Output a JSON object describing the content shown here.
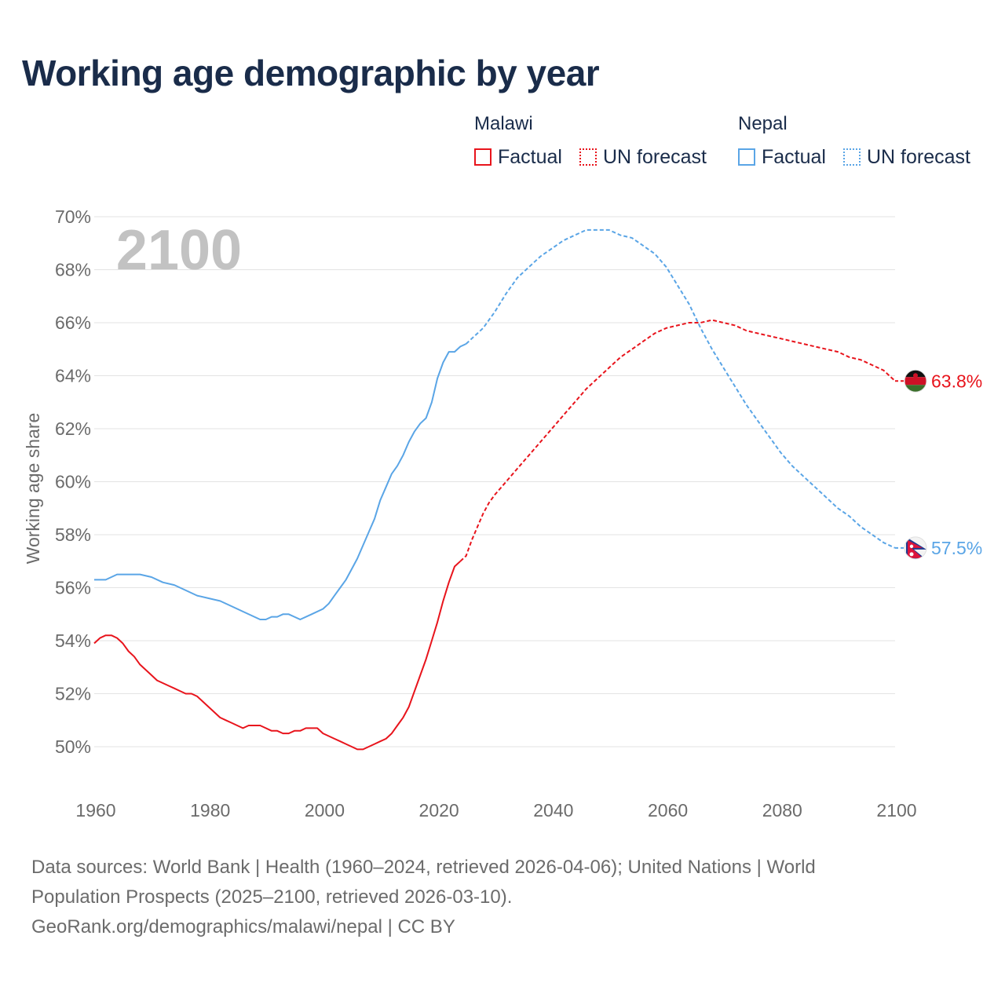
{
  "title": "Working age demographic by year",
  "legend": {
    "groups": [
      {
        "name": "Malawi",
        "items": [
          {
            "label": "Factual",
            "color": "#e8141c",
            "style": "solid"
          },
          {
            "label": "UN forecast",
            "color": "#e8141c",
            "style": "dotted"
          }
        ]
      },
      {
        "name": "Nepal",
        "items": [
          {
            "label": "Factual",
            "color": "#5aa5e6",
            "style": "solid"
          },
          {
            "label": "UN forecast",
            "color": "#5aa5e6",
            "style": "dotted"
          }
        ]
      }
    ]
  },
  "footer": {
    "line1": "Data sources: World Bank | Health (1960–2024, retrieved 2026-04-06); United Nations | World",
    "line2": "Population Prospects (2025–2100, retrieved 2026-03-10).",
    "line3": "GeoRank.org/demographics/malawi/nepal | CC BY"
  },
  "chart_data": {
    "type": "line",
    "title": "Working age demographic by year",
    "ylabel": "Working age share",
    "xlabel": "",
    "year_watermark": "2100",
    "xlim": [
      1960,
      2100
    ],
    "ylim": [
      49,
      70
    ],
    "x_ticks": [
      1960,
      1980,
      2000,
      2020,
      2040,
      2060,
      2080,
      2100
    ],
    "y_ticks": [
      50,
      52,
      54,
      56,
      58,
      60,
      62,
      64,
      66,
      68,
      70
    ],
    "y_tick_labels": [
      "50%",
      "52%",
      "54%",
      "56%",
      "58%",
      "60%",
      "62%",
      "64%",
      "66%",
      "68%",
      "70%"
    ],
    "grid": true,
    "series": [
      {
        "name": "Malawi",
        "color": "#e8141c",
        "end_label": "63.8%",
        "flag": "malawi",
        "factual": [
          [
            1960,
            53.9
          ],
          [
            1961,
            54.1
          ],
          [
            1962,
            54.2
          ],
          [
            1963,
            54.2
          ],
          [
            1964,
            54.1
          ],
          [
            1965,
            53.9
          ],
          [
            1966,
            53.6
          ],
          [
            1967,
            53.4
          ],
          [
            1968,
            53.1
          ],
          [
            1969,
            52.9
          ],
          [
            1970,
            52.7
          ],
          [
            1971,
            52.5
          ],
          [
            1972,
            52.4
          ],
          [
            1973,
            52.3
          ],
          [
            1974,
            52.2
          ],
          [
            1975,
            52.1
          ],
          [
            1976,
            52.0
          ],
          [
            1977,
            52.0
          ],
          [
            1978,
            51.9
          ],
          [
            1979,
            51.7
          ],
          [
            1980,
            51.5
          ],
          [
            1981,
            51.3
          ],
          [
            1982,
            51.1
          ],
          [
            1983,
            51.0
          ],
          [
            1984,
            50.9
          ],
          [
            1985,
            50.8
          ],
          [
            1986,
            50.7
          ],
          [
            1987,
            50.8
          ],
          [
            1988,
            50.8
          ],
          [
            1989,
            50.8
          ],
          [
            1990,
            50.7
          ],
          [
            1991,
            50.6
          ],
          [
            1992,
            50.6
          ],
          [
            1993,
            50.5
          ],
          [
            1994,
            50.5
          ],
          [
            1995,
            50.6
          ],
          [
            1996,
            50.6
          ],
          [
            1997,
            50.7
          ],
          [
            1998,
            50.7
          ],
          [
            1999,
            50.7
          ],
          [
            2000,
            50.5
          ],
          [
            2001,
            50.4
          ],
          [
            2002,
            50.3
          ],
          [
            2003,
            50.2
          ],
          [
            2004,
            50.1
          ],
          [
            2005,
            50.0
          ],
          [
            2006,
            49.9
          ],
          [
            2007,
            49.9
          ],
          [
            2008,
            50.0
          ],
          [
            2009,
            50.1
          ],
          [
            2010,
            50.2
          ],
          [
            2011,
            50.3
          ],
          [
            2012,
            50.5
          ],
          [
            2013,
            50.8
          ],
          [
            2014,
            51.1
          ],
          [
            2015,
            51.5
          ],
          [
            2016,
            52.1
          ],
          [
            2017,
            52.7
          ],
          [
            2018,
            53.3
          ],
          [
            2019,
            54.0
          ],
          [
            2020,
            54.7
          ],
          [
            2021,
            55.5
          ],
          [
            2022,
            56.2
          ],
          [
            2023,
            56.8
          ],
          [
            2024,
            57.0
          ]
        ],
        "forecast": [
          [
            2024,
            57.0
          ],
          [
            2025,
            57.2
          ],
          [
            2026,
            57.8
          ],
          [
            2027,
            58.3
          ],
          [
            2028,
            58.8
          ],
          [
            2029,
            59.2
          ],
          [
            2030,
            59.5
          ],
          [
            2032,
            60.0
          ],
          [
            2034,
            60.5
          ],
          [
            2036,
            61.0
          ],
          [
            2038,
            61.5
          ],
          [
            2040,
            62.0
          ],
          [
            2042,
            62.5
          ],
          [
            2044,
            63.0
          ],
          [
            2046,
            63.5
          ],
          [
            2048,
            63.9
          ],
          [
            2050,
            64.3
          ],
          [
            2052,
            64.7
          ],
          [
            2054,
            65.0
          ],
          [
            2056,
            65.3
          ],
          [
            2058,
            65.6
          ],
          [
            2060,
            65.8
          ],
          [
            2062,
            65.9
          ],
          [
            2064,
            66.0
          ],
          [
            2066,
            66.0
          ],
          [
            2068,
            66.1
          ],
          [
            2070,
            66.0
          ],
          [
            2072,
            65.9
          ],
          [
            2074,
            65.7
          ],
          [
            2076,
            65.6
          ],
          [
            2078,
            65.5
          ],
          [
            2080,
            65.4
          ],
          [
            2082,
            65.3
          ],
          [
            2084,
            65.2
          ],
          [
            2086,
            65.1
          ],
          [
            2088,
            65.0
          ],
          [
            2090,
            64.9
          ],
          [
            2092,
            64.7
          ],
          [
            2094,
            64.6
          ],
          [
            2096,
            64.4
          ],
          [
            2098,
            64.2
          ],
          [
            2100,
            63.8
          ]
        ]
      },
      {
        "name": "Nepal",
        "color": "#5aa5e6",
        "end_label": "57.5%",
        "flag": "nepal",
        "factual": [
          [
            1960,
            56.3
          ],
          [
            1962,
            56.3
          ],
          [
            1964,
            56.5
          ],
          [
            1966,
            56.5
          ],
          [
            1968,
            56.5
          ],
          [
            1970,
            56.4
          ],
          [
            1972,
            56.2
          ],
          [
            1974,
            56.1
          ],
          [
            1976,
            55.9
          ],
          [
            1978,
            55.7
          ],
          [
            1980,
            55.6
          ],
          [
            1982,
            55.5
          ],
          [
            1984,
            55.3
          ],
          [
            1986,
            55.1
          ],
          [
            1988,
            54.9
          ],
          [
            1989,
            54.8
          ],
          [
            1990,
            54.8
          ],
          [
            1991,
            54.9
          ],
          [
            1992,
            54.9
          ],
          [
            1993,
            55.0
          ],
          [
            1994,
            55.0
          ],
          [
            1995,
            54.9
          ],
          [
            1996,
            54.8
          ],
          [
            1998,
            55.0
          ],
          [
            2000,
            55.2
          ],
          [
            2001,
            55.4
          ],
          [
            2002,
            55.7
          ],
          [
            2003,
            56.0
          ],
          [
            2004,
            56.3
          ],
          [
            2005,
            56.7
          ],
          [
            2006,
            57.1
          ],
          [
            2007,
            57.6
          ],
          [
            2008,
            58.1
          ],
          [
            2009,
            58.6
          ],
          [
            2010,
            59.3
          ],
          [
            2011,
            59.8
          ],
          [
            2012,
            60.3
          ],
          [
            2013,
            60.6
          ],
          [
            2014,
            61.0
          ],
          [
            2015,
            61.5
          ],
          [
            2016,
            61.9
          ],
          [
            2017,
            62.2
          ],
          [
            2018,
            62.4
          ],
          [
            2019,
            63.0
          ],
          [
            2020,
            63.9
          ],
          [
            2021,
            64.5
          ],
          [
            2022,
            64.9
          ],
          [
            2023,
            64.9
          ],
          [
            2024,
            65.1
          ],
          [
            2025,
            65.2
          ]
        ],
        "forecast": [
          [
            2025,
            65.2
          ],
          [
            2026,
            65.4
          ],
          [
            2028,
            65.8
          ],
          [
            2030,
            66.4
          ],
          [
            2032,
            67.1
          ],
          [
            2034,
            67.7
          ],
          [
            2036,
            68.1
          ],
          [
            2038,
            68.5
          ],
          [
            2040,
            68.8
          ],
          [
            2042,
            69.1
          ],
          [
            2044,
            69.3
          ],
          [
            2046,
            69.5
          ],
          [
            2048,
            69.5
          ],
          [
            2050,
            69.5
          ],
          [
            2052,
            69.3
          ],
          [
            2054,
            69.2
          ],
          [
            2056,
            68.9
          ],
          [
            2058,
            68.6
          ],
          [
            2060,
            68.1
          ],
          [
            2062,
            67.4
          ],
          [
            2064,
            66.7
          ],
          [
            2066,
            65.8
          ],
          [
            2068,
            65.0
          ],
          [
            2070,
            64.3
          ],
          [
            2072,
            63.6
          ],
          [
            2074,
            62.9
          ],
          [
            2076,
            62.3
          ],
          [
            2078,
            61.7
          ],
          [
            2080,
            61.1
          ],
          [
            2082,
            60.6
          ],
          [
            2084,
            60.2
          ],
          [
            2086,
            59.8
          ],
          [
            2088,
            59.4
          ],
          [
            2090,
            59.0
          ],
          [
            2092,
            58.7
          ],
          [
            2094,
            58.3
          ],
          [
            2096,
            58.0
          ],
          [
            2098,
            57.7
          ],
          [
            2100,
            57.5
          ]
        ]
      }
    ]
  }
}
